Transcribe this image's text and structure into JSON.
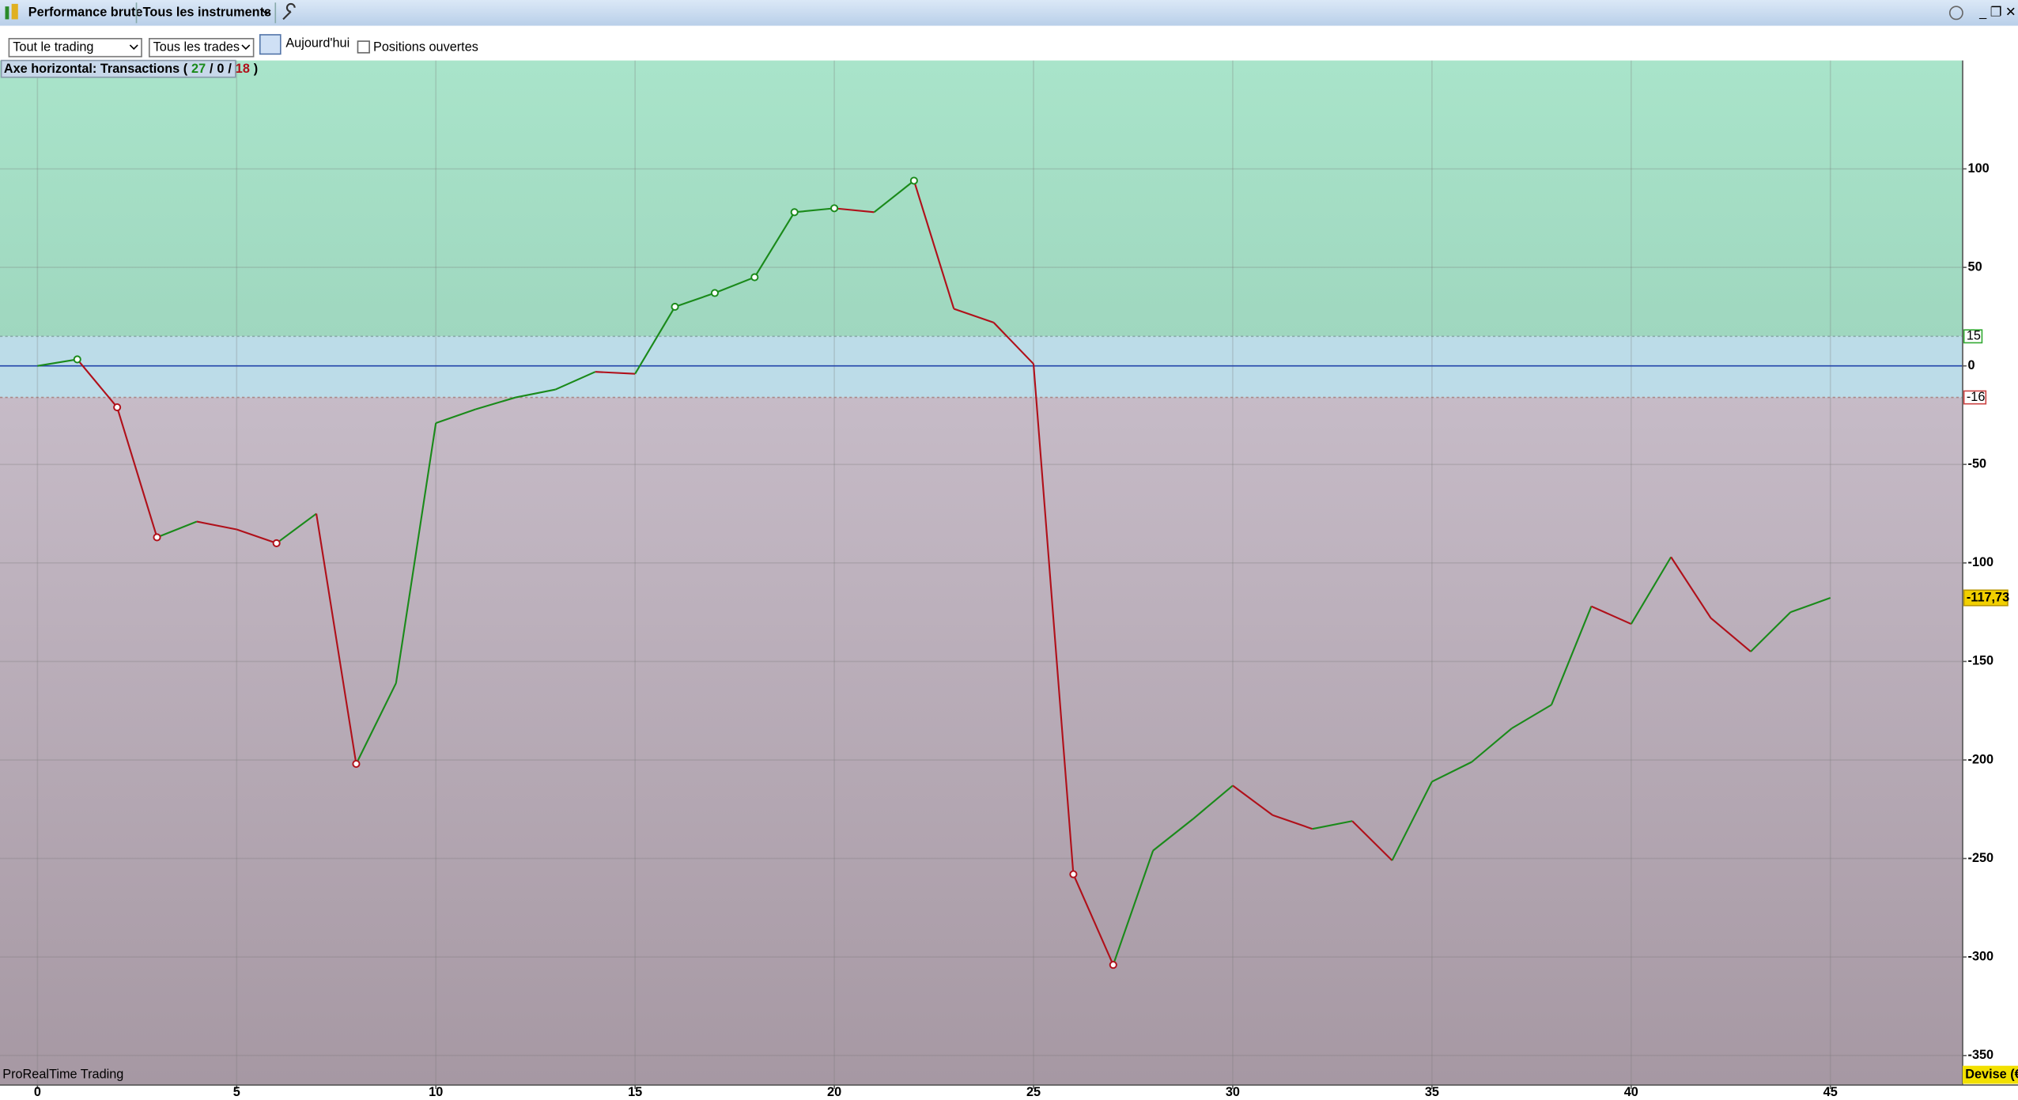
{
  "toolbar": {
    "title": "Performance brute",
    "instruments": "Tous les instruments",
    "scope": "Tout le trading",
    "trades": "Tous les trades",
    "date": "Aujourd'hui",
    "open_positions": "Positions ouvertes"
  },
  "header_parts": [
    "Axe horizontal: Transactions (",
    "27",
    "/",
    "0",
    "/",
    "18",
    ")"
  ],
  "footer_left": "ProRealTime Trading",
  "footer_right": "Devise (€",
  "chart_data": {
    "type": "line",
    "x": [
      0,
      1,
      2,
      3,
      4,
      5,
      6,
      7,
      8,
      9,
      10,
      11,
      12,
      13,
      14,
      15,
      16,
      17,
      18,
      19,
      20,
      21,
      22,
      23,
      24,
      25,
      26,
      27,
      28,
      29,
      30,
      31,
      32,
      33,
      34,
      35,
      36,
      37,
      38,
      39,
      40,
      41,
      42,
      43,
      44,
      45
    ],
    "values": [
      0,
      3.3,
      -21,
      -87,
      -79,
      -83,
      -90,
      -75,
      -202,
      -161,
      -29,
      -22,
      -16,
      -12,
      -3,
      -4,
      30,
      37,
      45,
      78,
      80,
      78,
      94,
      29,
      22,
      1,
      -258,
      -304,
      -246,
      -230,
      -213,
      -228,
      -235,
      -231,
      -251,
      -211,
      -201,
      -184,
      -172,
      -122,
      -131,
      -97,
      -128,
      -145,
      -125,
      -117.73
    ],
    "last_value_label": "-117,73",
    "markers": [
      1,
      2,
      3,
      6,
      8,
      16,
      17,
      18,
      19,
      20,
      22,
      26,
      27
    ],
    "up_color": "#1a8a1a",
    "down_color": "#b0101a",
    "upper_threshold": 15,
    "lower_threshold": -16,
    "xlim": [
      -0.94,
      48.32
    ],
    "ylim": [
      -365,
      155
    ],
    "xticks": [
      0,
      5,
      10,
      15,
      20,
      25,
      30,
      35,
      40,
      45
    ],
    "yticks": [
      100,
      50,
      0,
      -50,
      -100,
      -150,
      -200,
      -250,
      -300,
      -350
    ],
    "grid": true
  }
}
